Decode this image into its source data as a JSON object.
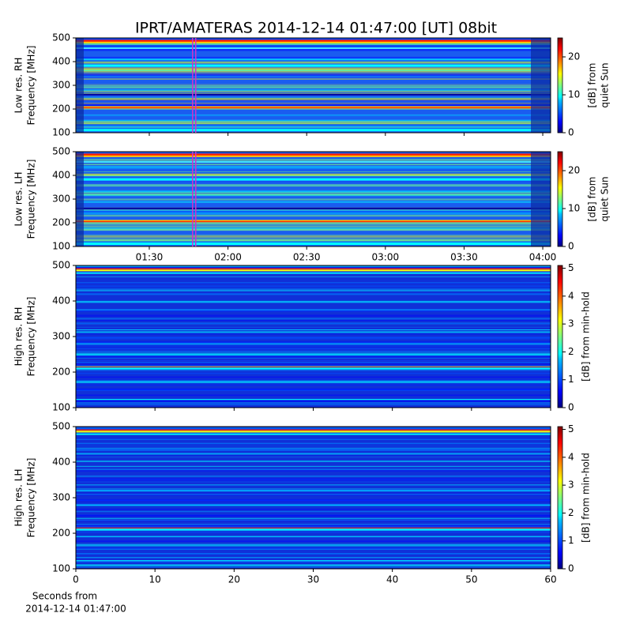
{
  "chart_data": [
    {
      "type": "heatmap",
      "title": "IPRT/AMATERAS 2014-12-14 01:47:00 [UT]   08bit",
      "ylabel": [
        "Low res. RH",
        "Frequency [MHz]"
      ],
      "ylim": [
        100,
        500
      ],
      "yticks": [
        100,
        200,
        300,
        400,
        500
      ],
      "xlim": [
        62,
        243
      ],
      "highlight": [
        106.5,
        107.7
      ],
      "highlight_color": "#cc33cc",
      "colorbar_label": [
        "[dB] from",
        "quiet Sun"
      ],
      "clim": [
        0,
        25
      ],
      "cticks": [
        0,
        10,
        20
      ]
    },
    {
      "type": "heatmap",
      "ylabel": [
        "Low res. LH",
        "Frequency [MHz]"
      ],
      "ylim": [
        100,
        500
      ],
      "yticks": [
        100,
        200,
        300,
        400,
        500
      ],
      "xlim": [
        62,
        243
      ],
      "xticks": [
        {
          "value": 90,
          "label": "01:30"
        },
        {
          "value": 120,
          "label": "02:00"
        },
        {
          "value": 150,
          "label": "02:30"
        },
        {
          "value": 180,
          "label": "03:00"
        },
        {
          "value": 210,
          "label": "03:30"
        },
        {
          "value": 240,
          "label": "04:00"
        }
      ],
      "highlight": [
        106.5,
        107.7
      ],
      "highlight_color": "#cc33cc",
      "colorbar_label": [
        "[dB] from",
        "quiet Sun"
      ],
      "clim": [
        0,
        25
      ],
      "cticks": [
        0,
        10,
        20
      ]
    },
    {
      "type": "heatmap",
      "ylabel": [
        "High res. RH",
        "Frequency [MHz]"
      ],
      "ylim": [
        100,
        500
      ],
      "yticks": [
        100,
        200,
        300,
        400,
        500
      ],
      "xlim": [
        0,
        60
      ],
      "colorbar_label": [
        "[dB] from min-hold"
      ],
      "clim": [
        0,
        5.1
      ],
      "cticks": [
        0,
        1,
        2,
        3,
        4,
        5
      ]
    },
    {
      "type": "heatmap",
      "ylabel": [
        "High res. LH",
        "Frequency [MHz]"
      ],
      "ylim": [
        100,
        500
      ],
      "yticks": [
        100,
        200,
        300,
        400,
        500
      ],
      "xlim": [
        0,
        60
      ],
      "xticks": [
        0,
        10,
        20,
        30,
        40,
        50,
        60
      ],
      "xlabel": [
        "Seconds from",
        "2014-12-14 01:47:00"
      ],
      "colorbar_label": [
        "[dB] from min-hold"
      ],
      "clim": [
        0,
        5.1
      ],
      "cticks": [
        0,
        1,
        2,
        3,
        4,
        5
      ]
    }
  ]
}
